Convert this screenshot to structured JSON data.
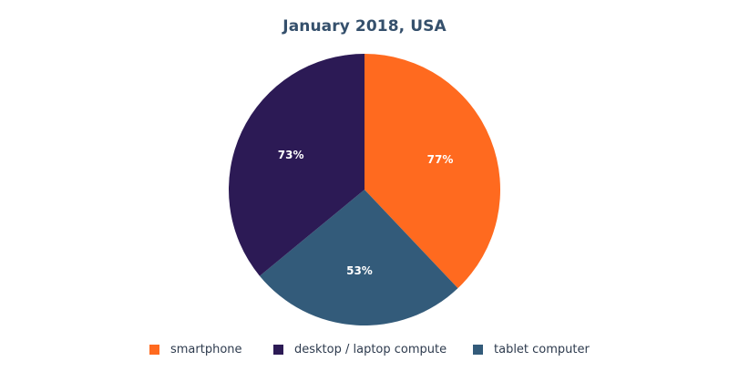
{
  "chart_data": {
    "type": "pie",
    "title": "January 2018, USA",
    "slices": [
      {
        "name": "smartphone",
        "value": 77,
        "label": "77%",
        "color": "#ff6a1f"
      },
      {
        "name": "tablet computer",
        "value": 53,
        "label": "53%",
        "color": "#335b7a"
      },
      {
        "name": "desktop / laptop compute",
        "value": 73,
        "label": "73%",
        "color": "#2c1a55"
      }
    ],
    "legend": {
      "placement": "bottom",
      "items": [
        {
          "label": "smartphone",
          "color": "#ff6a1f"
        },
        {
          "label": "desktop / laptop compute",
          "color": "#2c1a55"
        },
        {
          "label": "tablet computer",
          "color": "#335b7a"
        }
      ]
    }
  }
}
